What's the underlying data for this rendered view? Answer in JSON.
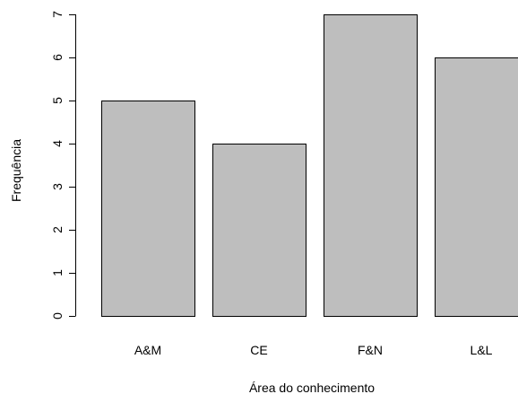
{
  "chart_data": {
    "type": "bar",
    "title": "",
    "xlabel": "Área do conhecimento",
    "ylabel": "Frequência",
    "categories": [
      "A&M",
      "CE",
      "F&N",
      "L&L"
    ],
    "values": [
      5,
      4,
      7,
      6
    ],
    "yticks": [
      "0",
      "1",
      "2",
      "3",
      "4",
      "5",
      "6",
      "7"
    ],
    "ylim": [
      0,
      7
    ],
    "grid": false,
    "legend": "none",
    "bar_color": "#bebebe",
    "bar_edge_color": "#000000"
  }
}
